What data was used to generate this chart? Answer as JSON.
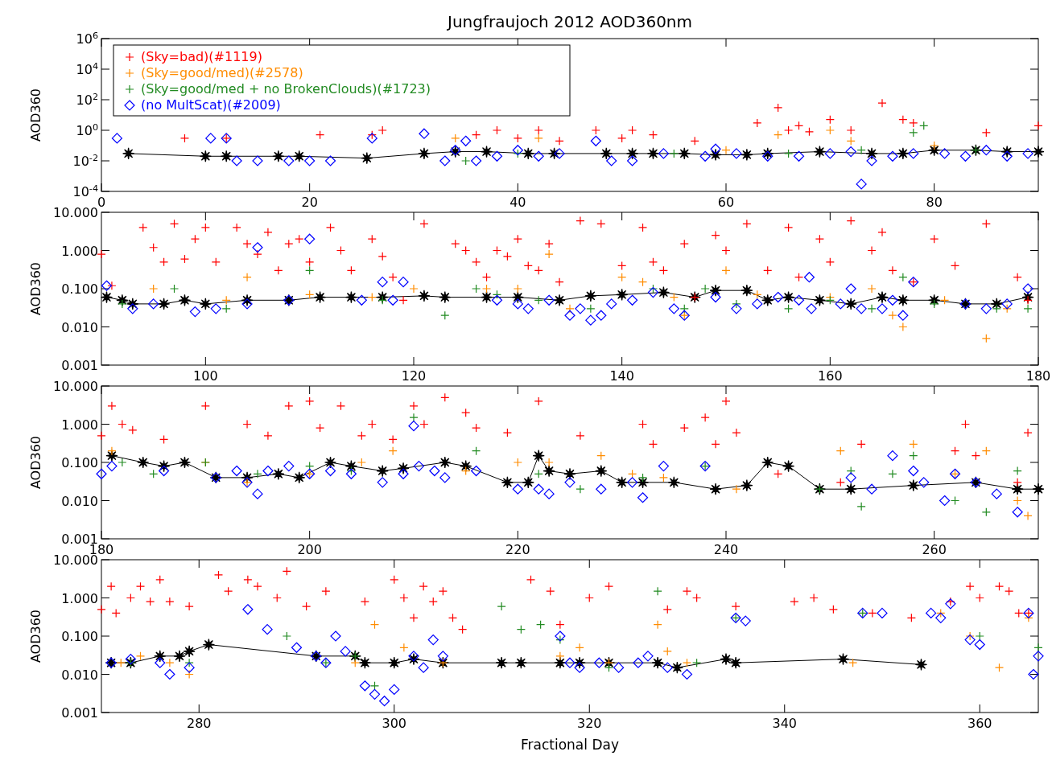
{
  "chart_data": [
    {
      "type": "scatter",
      "title": "Jungfraujoch 2012 AOD360nm",
      "ylabel": "AOD360",
      "log": true,
      "legend": "top left",
      "xlim": [
        0,
        90
      ],
      "xticks": [
        0,
        20,
        40,
        60,
        80
      ],
      "ylim": [
        0.0001,
        1000000
      ],
      "yticks": [
        {
          "value": 0.0001,
          "label": "10$^{-4}$"
        },
        {
          "value": 0.01,
          "label": "10$^{-2}$"
        },
        {
          "value": 1,
          "label": "10$^{0}$"
        },
        {
          "value": 100,
          "label": "10$^{2}$"
        },
        {
          "value": 10000,
          "label": "10$^{4}$"
        },
        {
          "value": 1000000,
          "label": "10$^{6}$"
        }
      ],
      "series": [
        {
          "name": "(Sky=bad)(#1119)",
          "color": "#ff0000",
          "marker": "cross",
          "x": [
            8,
            12,
            21,
            26,
            27,
            36,
            38,
            40,
            42,
            44,
            47.5,
            50,
            51,
            53,
            57,
            63,
            65,
            66,
            67,
            68,
            70,
            72,
            75,
            77,
            78,
            85,
            90
          ],
          "values": [
            0.3,
            0.3,
            0.5,
            0.5,
            1,
            0.5,
            1,
            0.3,
            1,
            0.2,
            1,
            0.3,
            1,
            0.5,
            0.2,
            3,
            30,
            1,
            2,
            0.8,
            5,
            1,
            60,
            5,
            3,
            0.7,
            2
          ]
        },
        {
          "name": "(Sky=good/med)(#2578)",
          "color": "#ff8c00",
          "marker": "cross",
          "x": [
            34,
            42,
            60,
            65,
            70,
            72,
            80
          ],
          "values": [
            0.3,
            0.3,
            0.05,
            0.5,
            1,
            0.2,
            0.1
          ]
        },
        {
          "name": "(Sky=good/med + no BrokenClouds)(#1723)",
          "color": "#228b22",
          "marker": "cross",
          "x": [
            35,
            40,
            55,
            66,
            73,
            78,
            79,
            84
          ],
          "values": [
            0.01,
            0.03,
            0.03,
            0.03,
            0.05,
            0.7,
            2,
            0.05
          ]
        },
        {
          "name": "(no MultScat)(#2009)",
          "color": "#0000ff",
          "marker": "diamond",
          "x": [
            1.5,
            10.5,
            12,
            13,
            15,
            18,
            20,
            22,
            26,
            31,
            33,
            34,
            35,
            36,
            38,
            40,
            42,
            44,
            47.5,
            49,
            51,
            54,
            58,
            59,
            61,
            64,
            67,
            70,
            72,
            73,
            74,
            76,
            78,
            81,
            83,
            85,
            87,
            89
          ],
          "values": [
            0.3,
            0.3,
            0.3,
            0.01,
            0.01,
            0.01,
            0.01,
            0.01,
            0.3,
            0.6,
            0.01,
            0.05,
            0.2,
            0.01,
            0.02,
            0.05,
            0.02,
            0.03,
            0.2,
            0.01,
            0.01,
            0.03,
            0.02,
            0.06,
            0.03,
            0.02,
            0.02,
            0.03,
            0.04,
            0.0003,
            0.01,
            0.02,
            0.03,
            0.03,
            0.02,
            0.05,
            0.02,
            0.03
          ]
        },
        {
          "type": "line",
          "color": "#000000",
          "marker": "star",
          "x": [
            2.6,
            10,
            12,
            17,
            19,
            25.5,
            31,
            34,
            37,
            41,
            43.5,
            48.5,
            51,
            53,
            56,
            59,
            62,
            64,
            69,
            74,
            77,
            80,
            84,
            87,
            90
          ],
          "values": [
            0.03,
            0.02,
            0.02,
            0.02,
            0.02,
            0.015,
            0.03,
            0.04,
            0.04,
            0.03,
            0.03,
            0.03,
            0.03,
            0.03,
            0.03,
            0.025,
            0.025,
            0.03,
            0.04,
            0.03,
            0.03,
            0.05,
            0.05,
            0.04,
            0.04
          ]
        }
      ]
    },
    {
      "type": "scatter",
      "ylabel": "AOD360",
      "log": true,
      "legend": false,
      "xlim": [
        90,
        180
      ],
      "xticks": [
        100,
        120,
        140,
        160,
        180
      ],
      "ylim": [
        0.001,
        10
      ],
      "yticks": [
        {
          "value": 0.001,
          "label": "0.001"
        },
        {
          "value": 0.01,
          "label": "0.010"
        },
        {
          "value": 0.1,
          "label": "0.100"
        },
        {
          "value": 1,
          "label": "1.000"
        },
        {
          "value": 10,
          "label": "10.000"
        }
      ],
      "series": [
        {
          "color": "#ff0000",
          "marker": "cross",
          "x": [
            90,
            91,
            94,
            95,
            96,
            97,
            98,
            99,
            100,
            101,
            103,
            104,
            105,
            106,
            107,
            108,
            109,
            110,
            112,
            113,
            114,
            116,
            117,
            118,
            119,
            121,
            124,
            125,
            126,
            127,
            128,
            129,
            130,
            131,
            132,
            133,
            134,
            136,
            138,
            140,
            142,
            143,
            144,
            146,
            147,
            149,
            150,
            152,
            154,
            156,
            157,
            159,
            160,
            162,
            164,
            165,
            166,
            168,
            170,
            172,
            175,
            178,
            179
          ],
          "values": [
            0.8,
            0.12,
            4,
            1.2,
            0.5,
            5,
            0.6,
            2,
            4,
            0.5,
            4,
            1.5,
            0.8,
            3,
            0.3,
            1.5,
            2,
            0.5,
            4,
            1,
            0.3,
            2,
            0.7,
            0.2,
            0.05,
            5,
            1.5,
            1,
            0.5,
            0.2,
            1,
            0.7,
            2,
            0.4,
            0.3,
            1.5,
            0.15,
            6,
            5,
            0.4,
            4,
            0.5,
            0.3,
            1.5,
            0.06,
            2.5,
            1,
            5,
            0.3,
            4,
            0.2,
            2,
            0.5,
            6,
            1,
            3,
            0.3,
            0.15,
            2,
            0.4,
            5,
            0.2,
            0.05
          ]
        },
        {
          "color": "#ff8c00",
          "marker": "cross",
          "x": [
            95,
            102,
            104,
            110,
            116,
            120,
            127,
            130,
            133,
            135,
            140,
            142,
            145,
            146,
            150,
            153,
            160,
            164,
            166,
            167,
            171,
            175,
            177
          ],
          "values": [
            0.1,
            0.05,
            0.2,
            0.07,
            0.06,
            0.1,
            0.1,
            0.1,
            0.8,
            0.03,
            0.2,
            0.15,
            0.06,
            0.02,
            0.3,
            0.07,
            0.06,
            0.1,
            0.02,
            0.01,
            0.05,
            0.005,
            0.03
          ]
        },
        {
          "color": "#228b22",
          "marker": "cross",
          "x": [
            92,
            97,
            102,
            110,
            117,
            123,
            126,
            128,
            132,
            137,
            143,
            146,
            148,
            151,
            156,
            160,
            164,
            167,
            170,
            176,
            179
          ],
          "values": [
            0.04,
            0.1,
            0.03,
            0.3,
            0.05,
            0.02,
            0.1,
            0.07,
            0.05,
            0.03,
            0.1,
            0.03,
            0.1,
            0.04,
            0.03,
            0.05,
            0.03,
            0.2,
            0.04,
            0.03,
            0.03
          ]
        },
        {
          "color": "#0000ff",
          "marker": "diamond",
          "x": [
            90.5,
            93,
            95,
            99,
            101,
            104,
            105,
            108,
            110,
            115,
            117,
            118,
            119,
            128,
            130,
            131,
            133,
            135,
            136,
            137,
            138,
            139,
            141,
            143,
            145,
            146,
            149,
            151,
            153,
            155,
            157,
            158,
            158.2,
            161,
            162,
            163,
            165,
            166,
            167,
            168,
            173,
            175,
            177,
            179
          ],
          "values": [
            0.12,
            0.03,
            0.04,
            0.025,
            0.03,
            0.04,
            1.2,
            0.05,
            2,
            0.05,
            0.15,
            0.05,
            0.15,
            0.05,
            0.04,
            0.03,
            0.05,
            0.02,
            0.03,
            0.015,
            0.02,
            0.04,
            0.05,
            0.08,
            0.03,
            0.02,
            0.06,
            0.03,
            0.04,
            0.06,
            0.05,
            0.2,
            0.03,
            0.04,
            0.1,
            0.03,
            0.03,
            0.05,
            0.02,
            0.15,
            0.04,
            0.03,
            0.04,
            0.1
          ]
        },
        {
          "type": "line",
          "color": "#000000",
          "marker": "star",
          "x": [
            90.5,
            92,
            93,
            96,
            98,
            100,
            104,
            108,
            111,
            114,
            117,
            121,
            123,
            127,
            130,
            134,
            137,
            140,
            144,
            147,
            149,
            152,
            154,
            156,
            159,
            162,
            165,
            167,
            170,
            173,
            176,
            179
          ],
          "values": [
            0.06,
            0.05,
            0.04,
            0.04,
            0.05,
            0.04,
            0.05,
            0.05,
            0.06,
            0.06,
            0.06,
            0.065,
            0.06,
            0.06,
            0.06,
            0.05,
            0.065,
            0.07,
            0.08,
            0.06,
            0.09,
            0.09,
            0.05,
            0.06,
            0.05,
            0.04,
            0.06,
            0.05,
            0.05,
            0.04,
            0.04,
            0.06
          ]
        }
      ]
    },
    {
      "type": "scatter",
      "ylabel": "AOD360",
      "log": true,
      "legend": false,
      "xlim": [
        180,
        270
      ],
      "xticks": [
        180,
        200,
        220,
        240,
        260
      ],
      "ylim": [
        0.001,
        10
      ],
      "yticks": [
        {
          "value": 0.001,
          "label": "0.001"
        },
        {
          "value": 0.01,
          "label": "0.010"
        },
        {
          "value": 0.1,
          "label": "0.100"
        },
        {
          "value": 1,
          "label": "1.000"
        },
        {
          "value": 10,
          "label": "10.000"
        }
      ],
      "series": [
        {
          "color": "#ff0000",
          "marker": "cross",
          "x": [
            180,
            181,
            182,
            183,
            186,
            190,
            194,
            196,
            198,
            200,
            201,
            203,
            205,
            206,
            208,
            210,
            211,
            213,
            215,
            216,
            219,
            222,
            226,
            232,
            233,
            236,
            238,
            239,
            240,
            241,
            245,
            251,
            253,
            262,
            263,
            264,
            268,
            269
          ],
          "values": [
            0.5,
            3,
            1,
            0.7,
            0.4,
            3,
            1,
            0.5,
            3,
            4,
            0.8,
            3,
            0.5,
            1,
            0.4,
            3,
            1,
            5,
            2,
            0.8,
            0.6,
            4,
            0.5,
            1,
            0.3,
            0.8,
            1.5,
            0.3,
            4,
            0.6,
            0.05,
            0.03,
            0.3,
            0.2,
            1,
            0.15,
            0.03,
            0.6
          ]
        },
        {
          "color": "#ff8c00",
          "marker": "cross",
          "x": [
            181,
            190,
            194,
            200,
            205,
            208,
            215,
            220,
            223,
            228,
            231,
            234,
            241,
            251,
            258,
            262,
            265,
            268,
            269
          ],
          "values": [
            0.2,
            0.1,
            0.03,
            0.05,
            0.1,
            0.2,
            0.06,
            0.1,
            0.1,
            0.15,
            0.05,
            0.04,
            0.02,
            0.2,
            0.3,
            0.05,
            0.2,
            0.01,
            0.004
          ]
        },
        {
          "color": "#228b22",
          "marker": "cross",
          "x": [
            182,
            185,
            190,
            195,
            200,
            204,
            210,
            216,
            222,
            226,
            232,
            238,
            249,
            252,
            253,
            256,
            258,
            262,
            265,
            268
          ],
          "values": [
            0.1,
            0.05,
            0.1,
            0.05,
            0.08,
            0.06,
            1.5,
            0.2,
            0.05,
            0.02,
            0.04,
            0.08,
            0.02,
            0.06,
            0.007,
            0.05,
            0.15,
            0.01,
            0.005,
            0.06
          ]
        },
        {
          "color": "#0000ff",
          "marker": "diamond",
          "x": [
            180,
            181,
            186,
            191,
            193,
            194,
            195,
            196,
            198,
            200,
            202,
            204,
            207,
            209,
            210,
            210.5,
            212,
            213,
            216,
            220,
            222,
            223,
            225,
            228,
            231,
            232,
            234,
            238,
            252,
            254,
            256,
            258,
            259,
            261,
            262,
            264,
            266,
            268
          ],
          "values": [
            0.05,
            0.08,
            0.06,
            0.04,
            0.06,
            0.03,
            0.015,
            0.06,
            0.08,
            0.05,
            0.06,
            0.05,
            0.03,
            0.05,
            0.9,
            0.08,
            0.06,
            0.04,
            0.06,
            0.02,
            0.02,
            0.015,
            0.03,
            0.02,
            0.03,
            0.012,
            0.08,
            0.08,
            0.04,
            0.02,
            0.15,
            0.06,
            0.03,
            0.01,
            0.05,
            0.03,
            0.015,
            0.005
          ]
        },
        {
          "type": "line",
          "color": "#000000",
          "marker": "star",
          "x": [
            181,
            184,
            186,
            188,
            191,
            194,
            197,
            199,
            202,
            204,
            207,
            209,
            213,
            215,
            219,
            221,
            222,
            223,
            225,
            228,
            230,
            232,
            235,
            239,
            242,
            244,
            246,
            249,
            252,
            258,
            264,
            268,
            270
          ],
          "values": [
            0.15,
            0.1,
            0.08,
            0.1,
            0.04,
            0.04,
            0.05,
            0.04,
            0.1,
            0.08,
            0.06,
            0.07,
            0.1,
            0.08,
            0.03,
            0.03,
            0.15,
            0.06,
            0.05,
            0.06,
            0.03,
            0.03,
            0.03,
            0.02,
            0.025,
            0.1,
            0.08,
            0.02,
            0.02,
            0.025,
            0.03,
            0.02,
            0.02
          ]
        }
      ]
    },
    {
      "type": "scatter",
      "ylabel": "AOD360",
      "xlabel": "Fractional Day",
      "log": true,
      "legend": false,
      "xlim": [
        270,
        366
      ],
      "xticks": [
        280,
        300,
        320,
        340,
        360
      ],
      "ylim": [
        0.001,
        10
      ],
      "yticks": [
        {
          "value": 0.001,
          "label": "0.001"
        },
        {
          "value": 0.01,
          "label": "0.010"
        },
        {
          "value": 0.1,
          "label": "0.100"
        },
        {
          "value": 1,
          "label": "1.000"
        },
        {
          "value": 10,
          "label": "10.000"
        }
      ],
      "series": [
        {
          "color": "#ff0000",
          "marker": "cross",
          "x": [
            270,
            271,
            271.5,
            273,
            274,
            275,
            276,
            277,
            279,
            282,
            283,
            285,
            286,
            288,
            289,
            291,
            293,
            297,
            300,
            301,
            302,
            303,
            304,
            305,
            306,
            307,
            314,
            316,
            317,
            320,
            322,
            328,
            330,
            331,
            335,
            341,
            343,
            345,
            349,
            353,
            357,
            359,
            360,
            362,
            363,
            364,
            365
          ],
          "values": [
            0.5,
            2,
            0.4,
            1,
            2,
            0.8,
            3,
            0.8,
            0.6,
            4,
            1.5,
            3,
            2,
            1,
            5,
            0.6,
            1.5,
            0.8,
            3,
            1,
            0.3,
            2,
            0.8,
            1.5,
            0.3,
            0.15,
            3,
            1.5,
            0.2,
            1,
            2,
            0.5,
            1.5,
            1,
            0.6,
            0.8,
            1,
            0.5,
            0.4,
            0.3,
            0.8,
            2,
            1,
            2,
            1.5,
            0.4,
            0.4
          ]
        },
        {
          "color": "#ff8c00",
          "marker": "cross",
          "x": [
            272,
            274,
            277,
            279,
            296,
            298,
            301,
            305,
            317,
            319,
            322,
            327,
            328,
            330,
            347,
            356,
            359,
            362,
            365
          ],
          "values": [
            0.02,
            0.03,
            0.02,
            0.01,
            0.02,
            0.2,
            0.05,
            0.02,
            0.03,
            0.05,
            0.02,
            0.2,
            0.04,
            0.02,
            0.02,
            0.4,
            0.1,
            0.015,
            0.3
          ]
        },
        {
          "color": "#228b22",
          "marker": "cross",
          "x": [
            273,
            279,
            289,
            293,
            296,
            298,
            311,
            313,
            315,
            317,
            322,
            327,
            331,
            335,
            348,
            360,
            366
          ],
          "values": [
            0.02,
            0.02,
            0.1,
            0.02,
            0.03,
            0.005,
            0.6,
            0.15,
            0.2,
            0.08,
            0.015,
            1.5,
            0.02,
            0.3,
            0.4,
            0.1,
            0.05
          ]
        },
        {
          "color": "#0000ff",
          "marker": "diamond",
          "x": [
            271,
            273,
            276,
            277,
            279,
            285,
            287,
            290,
            292,
            293,
            294,
            295,
            297,
            298,
            299,
            300,
            302,
            303,
            304,
            305,
            317,
            318,
            319,
            321,
            323,
            325,
            326,
            328,
            330,
            335,
            336,
            348,
            350,
            355,
            356,
            357,
            359,
            360,
            365,
            366,
            365.5
          ],
          "values": [
            0.02,
            0.025,
            0.02,
            0.01,
            0.015,
            0.5,
            0.15,
            0.05,
            0.03,
            0.02,
            0.1,
            0.04,
            0.005,
            0.003,
            0.002,
            0.004,
            0.03,
            0.015,
            0.08,
            0.03,
            0.1,
            0.02,
            0.015,
            0.02,
            0.015,
            0.02,
            0.03,
            0.015,
            0.01,
            0.3,
            0.25,
            0.4,
            0.4,
            0.4,
            0.3,
            0.7,
            0.08,
            0.06,
            0.4,
            0.03,
            0.01
          ]
        },
        {
          "type": "line",
          "color": "#000000",
          "marker": "star",
          "x": [
            271,
            273,
            276,
            278,
            279,
            281,
            292,
            296,
            297,
            300,
            302,
            305,
            311,
            313,
            317,
            319,
            322,
            327,
            329,
            334,
            335,
            346,
            354
          ],
          "values": [
            0.02,
            0.02,
            0.03,
            0.03,
            0.04,
            0.06,
            0.03,
            0.03,
            0.02,
            0.02,
            0.025,
            0.02,
            0.02,
            0.02,
            0.02,
            0.02,
            0.02,
            0.02,
            0.015,
            0.025,
            0.02,
            0.025,
            0.018
          ]
        }
      ]
    }
  ]
}
